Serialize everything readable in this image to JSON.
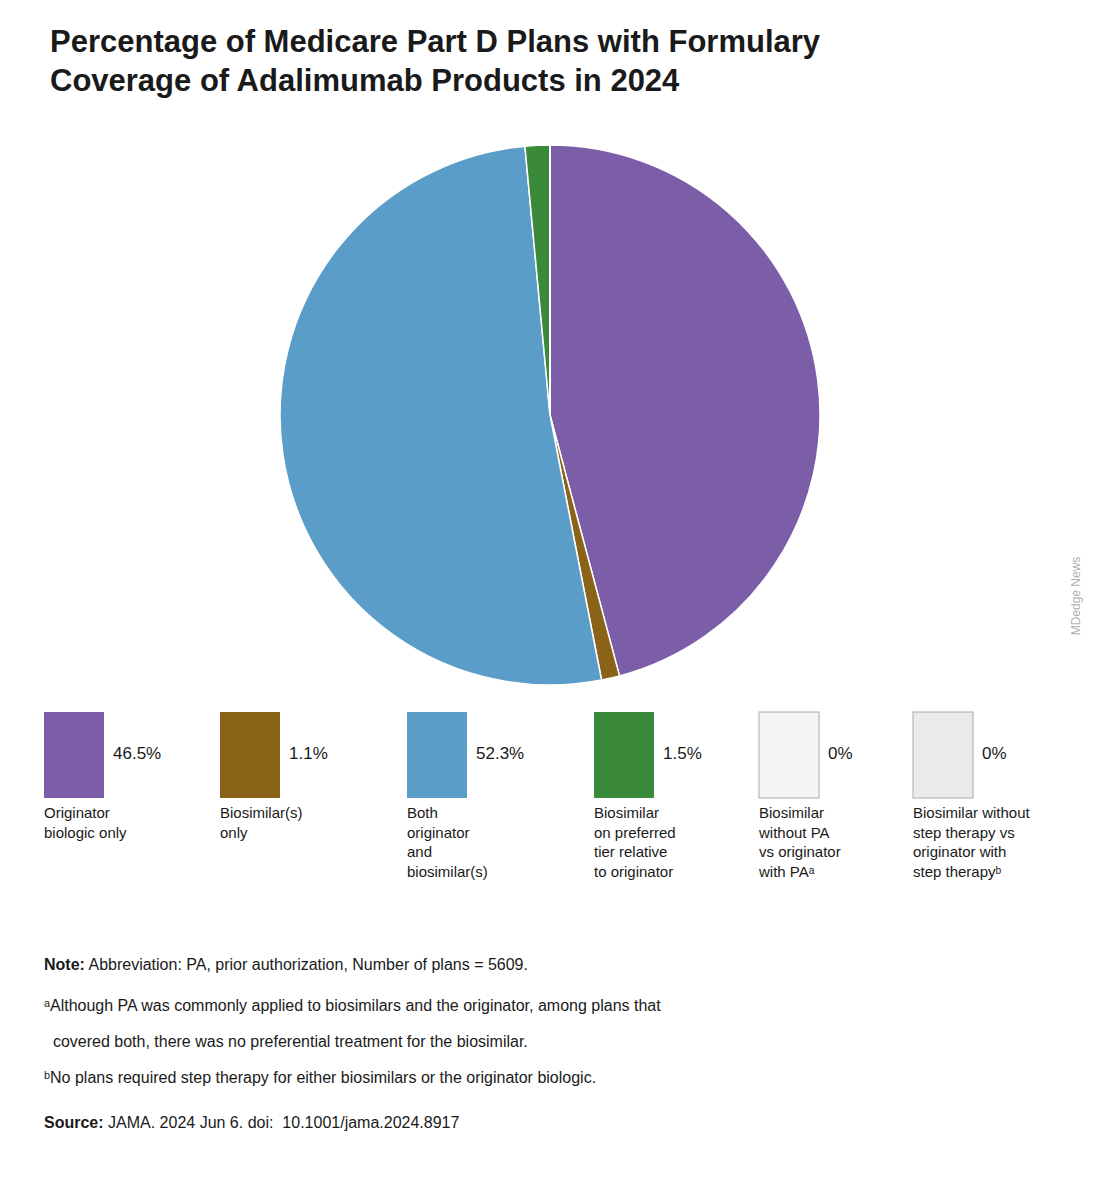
{
  "chart_data": {
    "type": "pie",
    "title": "Percentage of Medicare Part D Plans with Formulary\nCoverage of Adalimumab Products in 2024",
    "categories": [
      "Originator\nbiologic only",
      "Biosimilar(s)\nonly",
      "Both\noriginator\nand\nbiosimilar(s)",
      "Biosimilar\non preferred\ntier relative\nto originator",
      "Biosimilar\nwithout PA\nvs originator\nwith PAᵃ",
      "Biosimilar without\nstep therapy vs\noriginator with\nstep therapyᵇ"
    ],
    "values": [
      46.5,
      1.1,
      52.3,
      1.5,
      0.001,
      0.001
    ],
    "value_labels": [
      "46.5%",
      "1.1%",
      "52.3%",
      "1.5%",
      "0%",
      "0%"
    ],
    "colors": [
      "#7b5ea7",
      "#8b6318",
      "#5b9dc9",
      "#3a8a3a",
      "#f5f5f5",
      "#ebebeb"
    ],
    "legend": "bottom",
    "annotations": [
      [
        "Note:",
        " Abbreviation: PA, prior authorization, Number of plans = 5609."
      ],
      [
        "ᵃAlthough PA was commonly applied to biosimilars and the originator, among plans that"
      ],
      [
        "  covered both, there was no preferential treatment for the biosimilar."
      ],
      [
        "ᵇNo plans required step therapy for either biosimilars or the originator biologic."
      ],
      [
        "Source:",
        " JAMA. 2024 Jun 6. doi:  10.1001/jama.2024.8917"
      ],
      [
        "MDedge News"
      ]
    ]
  }
}
